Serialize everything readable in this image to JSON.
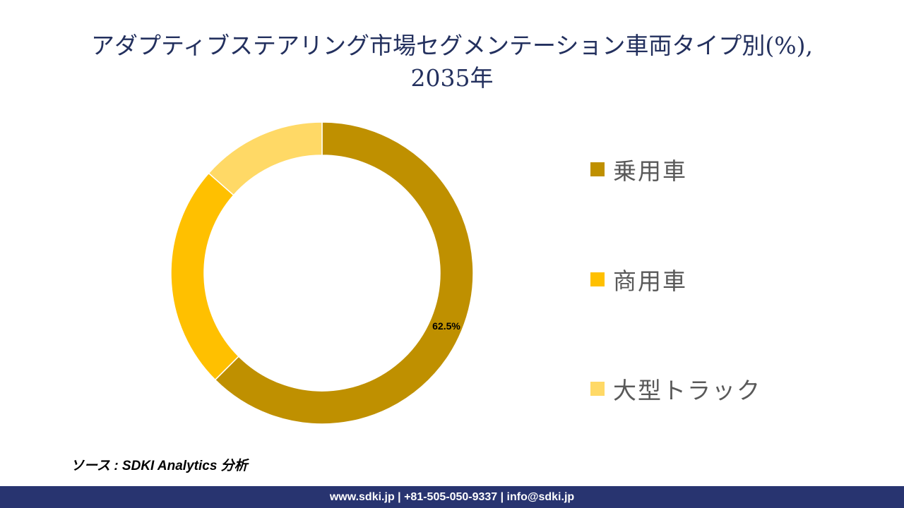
{
  "title": {
    "line1": "アダプティブステアリング市場セグメンテーション車両タイプ別(%),",
    "line2": "2035年"
  },
  "chart_data": {
    "type": "pie",
    "subtype": "donut",
    "title": "アダプティブステアリング市場セグメンテーション車両タイプ別(%), 2035年",
    "categories": [
      "乗用車",
      "商用車",
      "大型トラック"
    ],
    "values": [
      62.5,
      24.0,
      13.5
    ],
    "values_note": "Only 62.5 is labeled on the chart; 24.0 and 13.5 are estimated from arc angles and are not shown on screen.",
    "labeled_values": {
      "乗用車": 62.5
    },
    "colors": [
      "#bf9000",
      "#ffc000",
      "#ffd966"
    ],
    "data_labels": [
      {
        "category": "乗用車",
        "text": "62.5%"
      }
    ],
    "legend_position": "right",
    "start_angle": 0,
    "direction": "clockwise"
  },
  "legend": {
    "items": [
      {
        "label": "乗用車",
        "color": "#bf9000"
      },
      {
        "label": "商用車",
        "color": "#ffc000"
      },
      {
        "label": "大型トラック",
        "color": "#ffd966"
      }
    ]
  },
  "source": "ソース : SDKI Analytics 分析",
  "footer": "www.sdki.jp | +81-505-050-9337 | info@sdki.jp"
}
